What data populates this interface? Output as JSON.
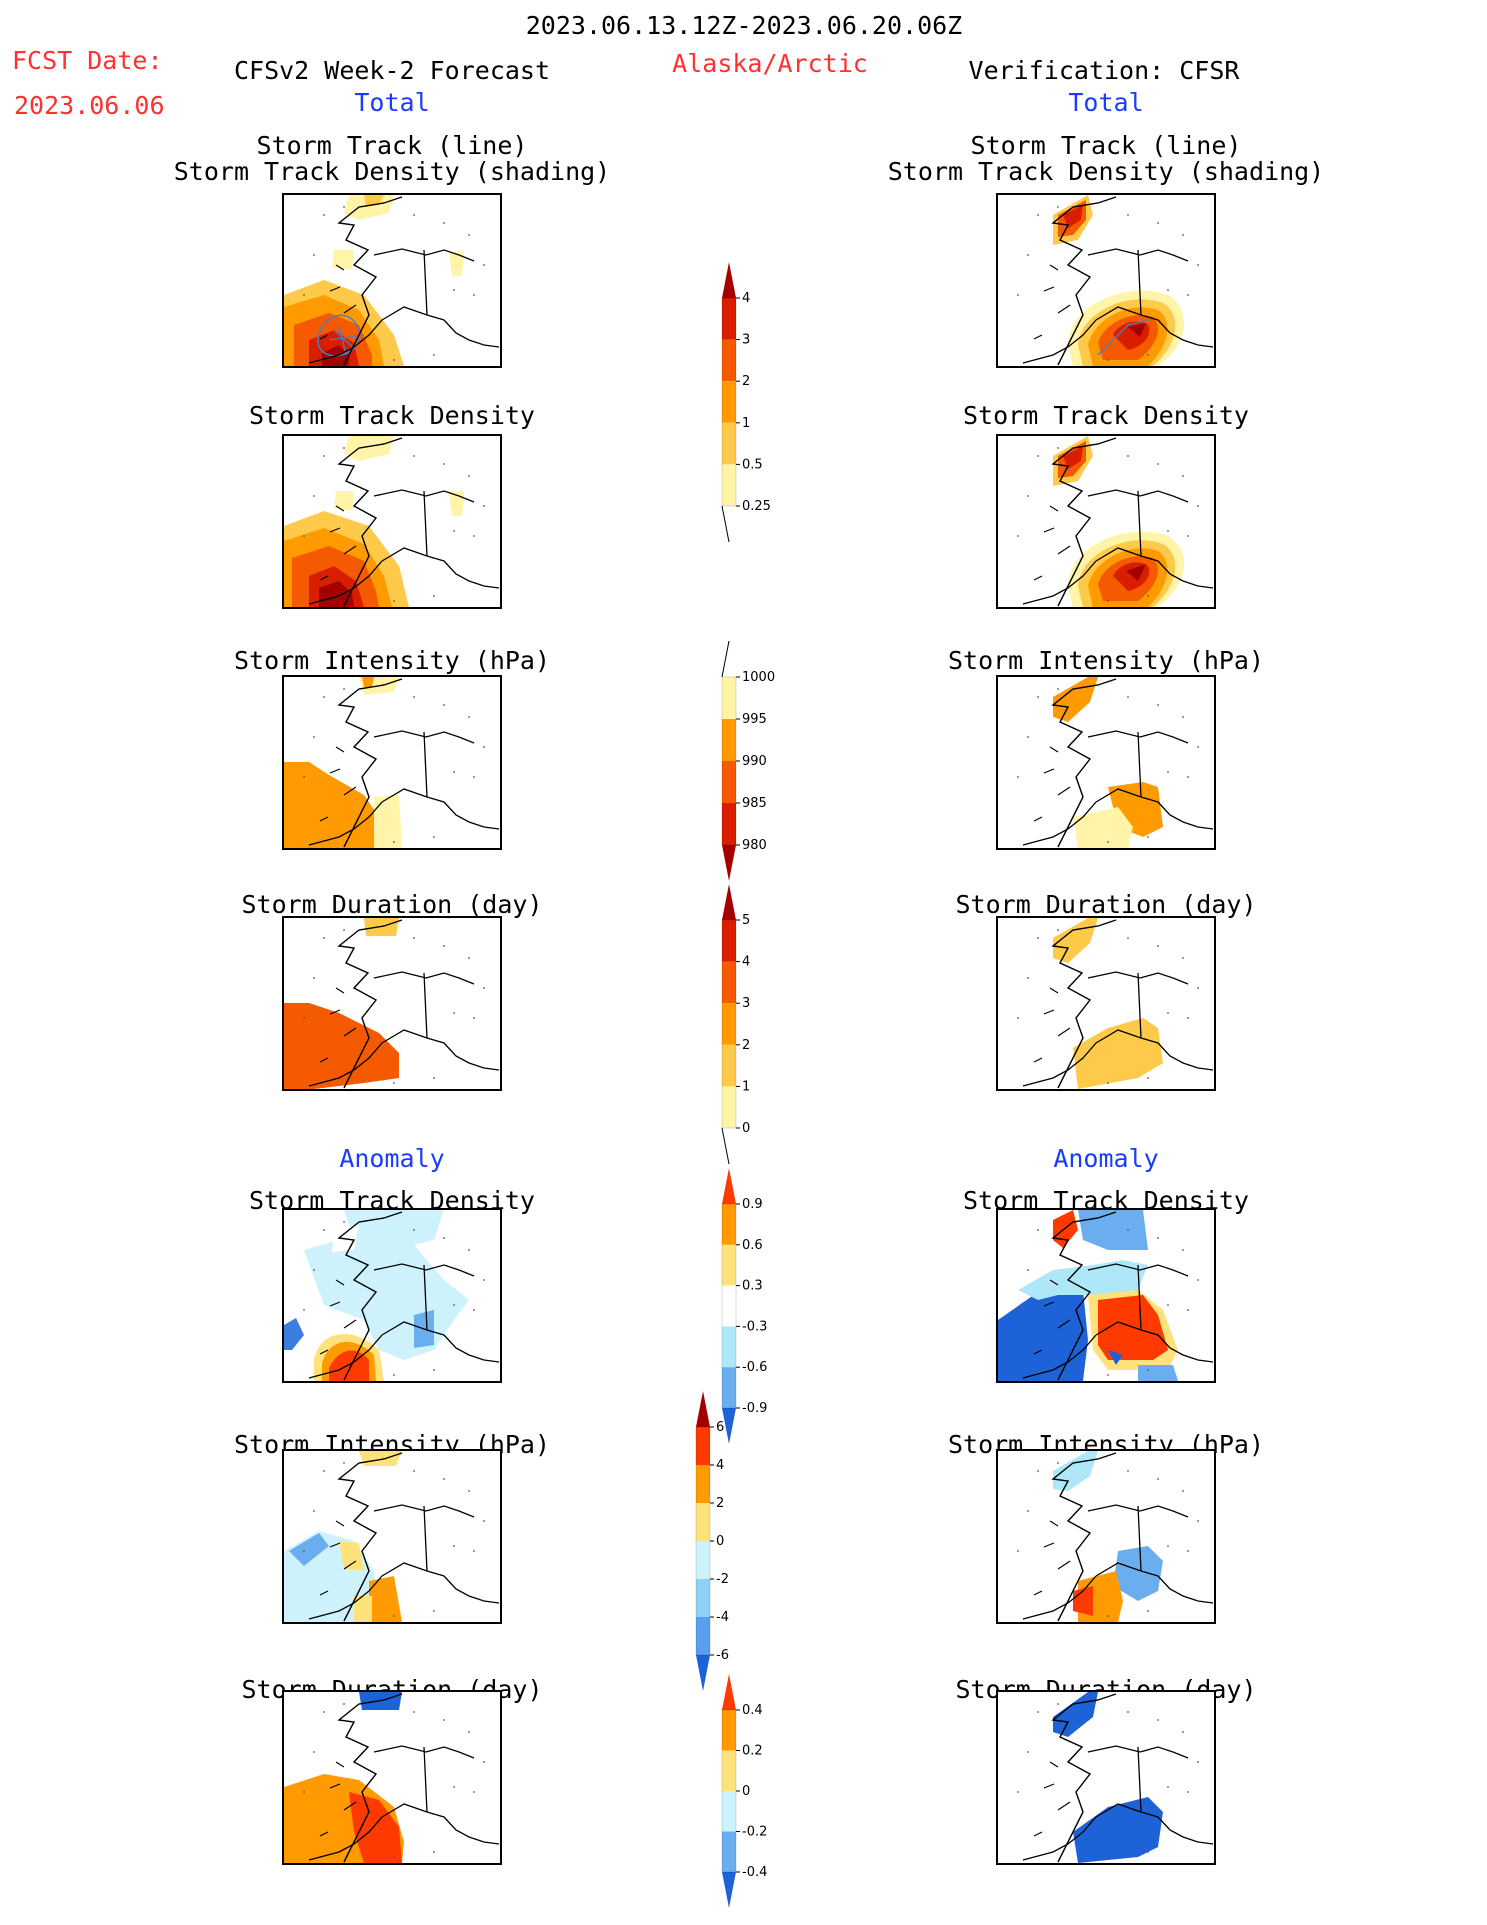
{
  "header": {
    "period": "2023.06.13.12Z-2023.06.20.06Z",
    "fcst_date_label": "FCST Date:",
    "fcst_date_value": "2023.06.06",
    "forecast_title": "CFSv2 Week-2 Forecast",
    "region": "Alaska/Arctic",
    "verification_title": "Verification: CFSR",
    "total_left": "Total",
    "total_right": "Total",
    "anomaly_left": "Anomaly",
    "anomaly_right": "Anomaly"
  },
  "panel_titles": {
    "storm_track_line": "Storm Track (line)",
    "storm_track_density_shading": "Storm Track Density (shading)",
    "storm_track_density": "Storm Track Density",
    "storm_intensity": "Storm Intensity (hPa)",
    "storm_duration": "Storm Duration (day)"
  },
  "colorbars": {
    "density_total": {
      "ticks": [
        "4",
        "3",
        "2",
        "1",
        "0.5",
        "0.25"
      ],
      "colors": [
        "#a50000",
        "#d91e00",
        "#f55a00",
        "#ff9a00",
        "#ffc94a",
        "#fff4a8"
      ]
    },
    "intensity_total": {
      "ticks": [
        "1000",
        "995",
        "990",
        "985",
        "980"
      ],
      "colors": [
        "#fff4a8",
        "#ff9a00",
        "#f55a00",
        "#d91e00",
        "#a50000"
      ]
    },
    "duration_total": {
      "ticks": [
        "5",
        "4",
        "3",
        "2",
        "1",
        "0"
      ],
      "colors": [
        "#a50000",
        "#d91e00",
        "#f55a00",
        "#ff9a00",
        "#ffc94a",
        "#fff4a8"
      ]
    },
    "density_anomaly": {
      "ticks": [
        "0.9",
        "0.6",
        "0.3",
        "-0.3",
        "-0.6",
        "-0.9"
      ],
      "colors": [
        "#ff3a00",
        "#ff9a00",
        "#ffe27a",
        "#ffffff",
        "#aee8f8",
        "#6aaef0",
        "#1e62d8"
      ]
    },
    "intensity_anomaly": {
      "ticks": [
        "6",
        "4",
        "2",
        "0",
        "-2",
        "-4",
        "-6"
      ],
      "colors": [
        "#a50000",
        "#ff3a00",
        "#ff9a00",
        "#ffe27a",
        "#cdf2fb",
        "#8fd0f5",
        "#5a9ef0",
        "#1e62d8"
      ]
    },
    "duration_anomaly": {
      "ticks": [
        "0.4",
        "0.2",
        "0",
        "-0.2",
        "-0.4"
      ],
      "colors": [
        "#ff3a00",
        "#ff9a00",
        "#ffe27a",
        "#cdf2fb",
        "#6aaef0",
        "#1e62d8"
      ]
    }
  }
}
